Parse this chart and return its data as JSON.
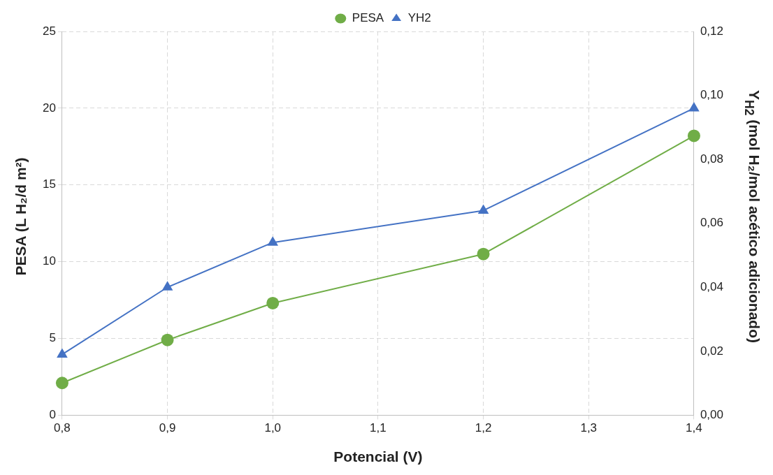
{
  "chart_data": {
    "type": "line",
    "xlabel": "Potencial (V)",
    "ylabel": "PESA (L H₂/d m²)",
    "y2label": "Y$_{H2}$ (mol H₂/mol acético adicionado)",
    "x": [
      0.8,
      0.9,
      1.0,
      1.2,
      1.4
    ],
    "series": [
      {
        "name": "PESA",
        "color": "#70ad47",
        "marker": "circle",
        "values": [
          2.1,
          4.9,
          7.3,
          10.5,
          18.2
        ]
      },
      {
        "name": "YH2",
        "color": "#4472c4",
        "marker": "triangle",
        "axis": "y2",
        "values": [
          0.019,
          0.04,
          0.054,
          0.064,
          0.096
        ]
      }
    ],
    "xlim": [
      0.8,
      1.4
    ],
    "xticks": [
      {
        "value": 0.8,
        "label": "0,8"
      },
      {
        "value": 0.9,
        "label": "0,9"
      },
      {
        "value": 1.0,
        "label": "1,0"
      },
      {
        "value": 1.1,
        "label": "1,1"
      },
      {
        "value": 1.2,
        "label": "1,2"
      },
      {
        "value": 1.3,
        "label": "1,3"
      },
      {
        "value": 1.4,
        "label": "1,4"
      }
    ],
    "ylim": [
      0,
      25
    ],
    "yticks": [
      0,
      5,
      10,
      15,
      20,
      25
    ],
    "y2lim": [
      0,
      0.12
    ],
    "y2ticks": [
      {
        "value": 0,
        "label": "0,00"
      },
      {
        "value": 0.02,
        "label": "0,02"
      },
      {
        "value": 0.04,
        "label": "0,04"
      },
      {
        "value": 0.06,
        "label": "0,06"
      },
      {
        "value": 0.08,
        "label": "0,08"
      },
      {
        "value": 0.1,
        "label": "0,10"
      },
      {
        "value": 0.12,
        "label": "0,12"
      }
    ],
    "grid": true,
    "legend": "top",
    "line_style": "solid"
  }
}
